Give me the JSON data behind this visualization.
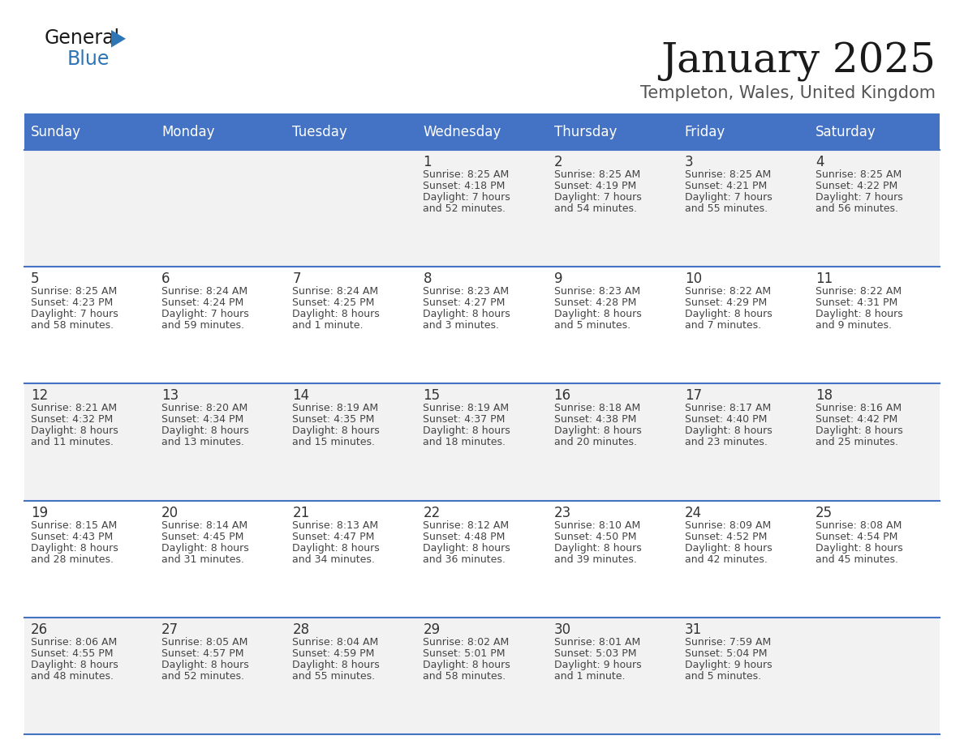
{
  "title": "January 2025",
  "subtitle": "Templeton, Wales, United Kingdom",
  "header_color": "#4472C4",
  "header_text_color": "#FFFFFF",
  "day_names": [
    "Sunday",
    "Monday",
    "Tuesday",
    "Wednesday",
    "Thursday",
    "Friday",
    "Saturday"
  ],
  "background_color": "#FFFFFF",
  "cell_bg_even": "#F2F2F2",
  "cell_bg_odd": "#FFFFFF",
  "separator_color": "#4472C4",
  "number_color": "#333333",
  "text_color": "#444444",
  "days": [
    {
      "date": 1,
      "col": 3,
      "row": 0,
      "sunrise": "8:25 AM",
      "sunset": "4:18 PM",
      "daylight_h": "7 hours",
      "daylight_m": "and 52 minutes."
    },
    {
      "date": 2,
      "col": 4,
      "row": 0,
      "sunrise": "8:25 AM",
      "sunset": "4:19 PM",
      "daylight_h": "7 hours",
      "daylight_m": "and 54 minutes."
    },
    {
      "date": 3,
      "col": 5,
      "row": 0,
      "sunrise": "8:25 AM",
      "sunset": "4:21 PM",
      "daylight_h": "7 hours",
      "daylight_m": "and 55 minutes."
    },
    {
      "date": 4,
      "col": 6,
      "row": 0,
      "sunrise": "8:25 AM",
      "sunset": "4:22 PM",
      "daylight_h": "7 hours",
      "daylight_m": "and 56 minutes."
    },
    {
      "date": 5,
      "col": 0,
      "row": 1,
      "sunrise": "8:25 AM",
      "sunset": "4:23 PM",
      "daylight_h": "7 hours",
      "daylight_m": "and 58 minutes."
    },
    {
      "date": 6,
      "col": 1,
      "row": 1,
      "sunrise": "8:24 AM",
      "sunset": "4:24 PM",
      "daylight_h": "7 hours",
      "daylight_m": "and 59 minutes."
    },
    {
      "date": 7,
      "col": 2,
      "row": 1,
      "sunrise": "8:24 AM",
      "sunset": "4:25 PM",
      "daylight_h": "8 hours",
      "daylight_m": "and 1 minute."
    },
    {
      "date": 8,
      "col": 3,
      "row": 1,
      "sunrise": "8:23 AM",
      "sunset": "4:27 PM",
      "daylight_h": "8 hours",
      "daylight_m": "and 3 minutes."
    },
    {
      "date": 9,
      "col": 4,
      "row": 1,
      "sunrise": "8:23 AM",
      "sunset": "4:28 PM",
      "daylight_h": "8 hours",
      "daylight_m": "and 5 minutes."
    },
    {
      "date": 10,
      "col": 5,
      "row": 1,
      "sunrise": "8:22 AM",
      "sunset": "4:29 PM",
      "daylight_h": "8 hours",
      "daylight_m": "and 7 minutes."
    },
    {
      "date": 11,
      "col": 6,
      "row": 1,
      "sunrise": "8:22 AM",
      "sunset": "4:31 PM",
      "daylight_h": "8 hours",
      "daylight_m": "and 9 minutes."
    },
    {
      "date": 12,
      "col": 0,
      "row": 2,
      "sunrise": "8:21 AM",
      "sunset": "4:32 PM",
      "daylight_h": "8 hours",
      "daylight_m": "and 11 minutes."
    },
    {
      "date": 13,
      "col": 1,
      "row": 2,
      "sunrise": "8:20 AM",
      "sunset": "4:34 PM",
      "daylight_h": "8 hours",
      "daylight_m": "and 13 minutes."
    },
    {
      "date": 14,
      "col": 2,
      "row": 2,
      "sunrise": "8:19 AM",
      "sunset": "4:35 PM",
      "daylight_h": "8 hours",
      "daylight_m": "and 15 minutes."
    },
    {
      "date": 15,
      "col": 3,
      "row": 2,
      "sunrise": "8:19 AM",
      "sunset": "4:37 PM",
      "daylight_h": "8 hours",
      "daylight_m": "and 18 minutes."
    },
    {
      "date": 16,
      "col": 4,
      "row": 2,
      "sunrise": "8:18 AM",
      "sunset": "4:38 PM",
      "daylight_h": "8 hours",
      "daylight_m": "and 20 minutes."
    },
    {
      "date": 17,
      "col": 5,
      "row": 2,
      "sunrise": "8:17 AM",
      "sunset": "4:40 PM",
      "daylight_h": "8 hours",
      "daylight_m": "and 23 minutes."
    },
    {
      "date": 18,
      "col": 6,
      "row": 2,
      "sunrise": "8:16 AM",
      "sunset": "4:42 PM",
      "daylight_h": "8 hours",
      "daylight_m": "and 25 minutes."
    },
    {
      "date": 19,
      "col": 0,
      "row": 3,
      "sunrise": "8:15 AM",
      "sunset": "4:43 PM",
      "daylight_h": "8 hours",
      "daylight_m": "and 28 minutes."
    },
    {
      "date": 20,
      "col": 1,
      "row": 3,
      "sunrise": "8:14 AM",
      "sunset": "4:45 PM",
      "daylight_h": "8 hours",
      "daylight_m": "and 31 minutes."
    },
    {
      "date": 21,
      "col": 2,
      "row": 3,
      "sunrise": "8:13 AM",
      "sunset": "4:47 PM",
      "daylight_h": "8 hours",
      "daylight_m": "and 34 minutes."
    },
    {
      "date": 22,
      "col": 3,
      "row": 3,
      "sunrise": "8:12 AM",
      "sunset": "4:48 PM",
      "daylight_h": "8 hours",
      "daylight_m": "and 36 minutes."
    },
    {
      "date": 23,
      "col": 4,
      "row": 3,
      "sunrise": "8:10 AM",
      "sunset": "4:50 PM",
      "daylight_h": "8 hours",
      "daylight_m": "and 39 minutes."
    },
    {
      "date": 24,
      "col": 5,
      "row": 3,
      "sunrise": "8:09 AM",
      "sunset": "4:52 PM",
      "daylight_h": "8 hours",
      "daylight_m": "and 42 minutes."
    },
    {
      "date": 25,
      "col": 6,
      "row": 3,
      "sunrise": "8:08 AM",
      "sunset": "4:54 PM",
      "daylight_h": "8 hours",
      "daylight_m": "and 45 minutes."
    },
    {
      "date": 26,
      "col": 0,
      "row": 4,
      "sunrise": "8:06 AM",
      "sunset": "4:55 PM",
      "daylight_h": "8 hours",
      "daylight_m": "and 48 minutes."
    },
    {
      "date": 27,
      "col": 1,
      "row": 4,
      "sunrise": "8:05 AM",
      "sunset": "4:57 PM",
      "daylight_h": "8 hours",
      "daylight_m": "and 52 minutes."
    },
    {
      "date": 28,
      "col": 2,
      "row": 4,
      "sunrise": "8:04 AM",
      "sunset": "4:59 PM",
      "daylight_h": "8 hours",
      "daylight_m": "and 55 minutes."
    },
    {
      "date": 29,
      "col": 3,
      "row": 4,
      "sunrise": "8:02 AM",
      "sunset": "5:01 PM",
      "daylight_h": "8 hours",
      "daylight_m": "and 58 minutes."
    },
    {
      "date": 30,
      "col": 4,
      "row": 4,
      "sunrise": "8:01 AM",
      "sunset": "5:03 PM",
      "daylight_h": "9 hours",
      "daylight_m": "and 1 minute."
    },
    {
      "date": 31,
      "col": 5,
      "row": 4,
      "sunrise": "7:59 AM",
      "sunset": "5:04 PM",
      "daylight_h": "9 hours",
      "daylight_m": "and 5 minutes."
    }
  ]
}
